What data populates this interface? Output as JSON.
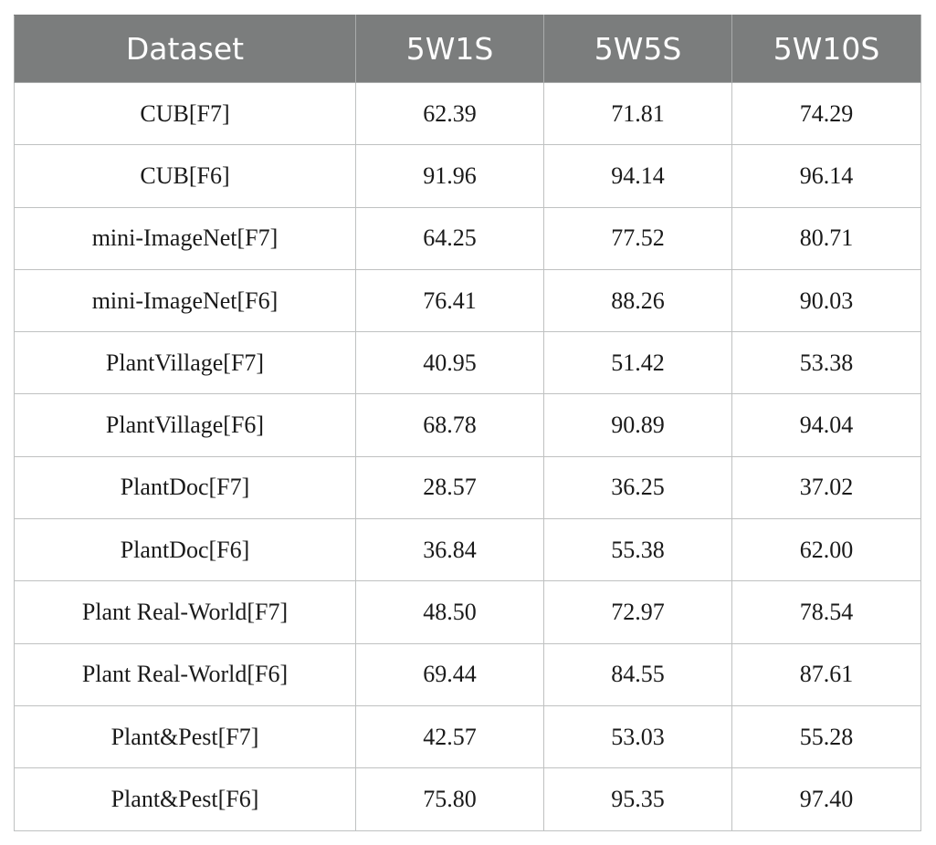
{
  "table": {
    "headers": [
      "Dataset",
      "5W1S",
      "5W5S",
      "5W10S"
    ],
    "rows": [
      [
        "CUB[F7]",
        "62.39",
        "71.81",
        "74.29"
      ],
      [
        "CUB[F6]",
        "91.96",
        "94.14",
        "96.14"
      ],
      [
        "mini-ImageNet[F7]",
        "64.25",
        "77.52",
        "80.71"
      ],
      [
        "mini-ImageNet[F6]",
        "76.41",
        "88.26",
        "90.03"
      ],
      [
        "PlantVillage[F7]",
        "40.95",
        "51.42",
        "53.38"
      ],
      [
        "PlantVillage[F6]",
        "68.78",
        "90.89",
        "94.04"
      ],
      [
        "PlantDoc[F7]",
        "28.57",
        "36.25",
        "37.02"
      ],
      [
        "PlantDoc[F6]",
        "36.84",
        "55.38",
        "62.00"
      ],
      [
        "Plant Real-World[F7]",
        "48.50",
        "72.97",
        "78.54"
      ],
      [
        "Plant Real-World[F6]",
        "69.44",
        "84.55",
        "87.61"
      ],
      [
        "Plant&Pest[F7]",
        "42.57",
        "53.03",
        "55.28"
      ],
      [
        "Plant&Pest[F6]",
        "75.80",
        "95.35",
        "97.40"
      ]
    ]
  },
  "colors": {
    "header_background": "#7b7d7d",
    "header_text": "#ffffff",
    "grid_line": "#bfc1c1"
  }
}
